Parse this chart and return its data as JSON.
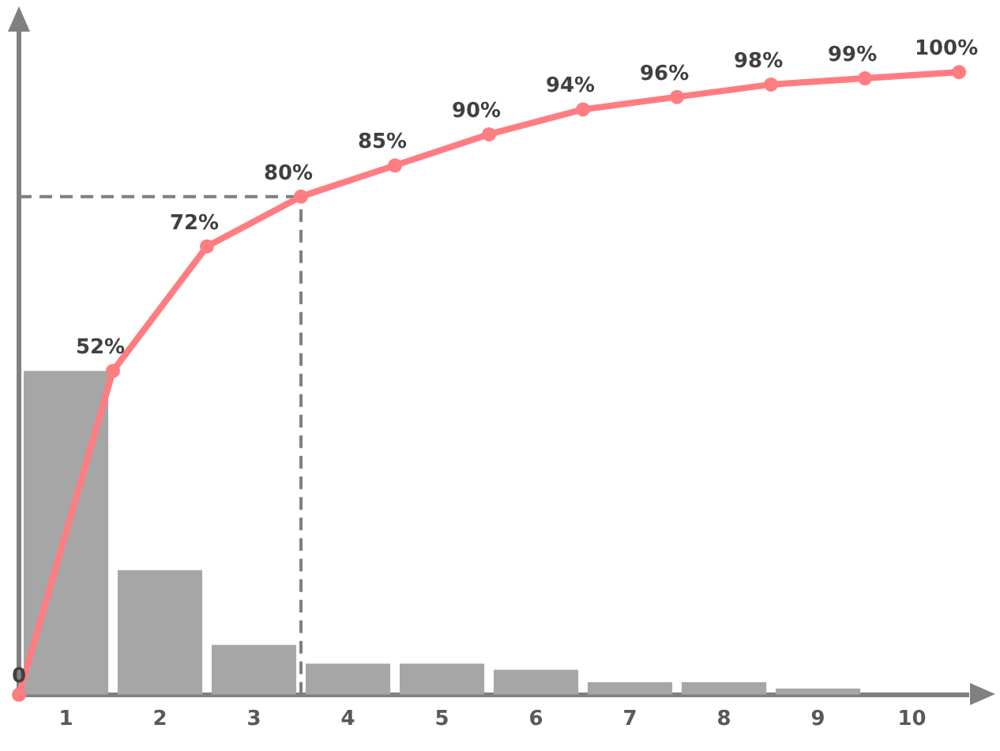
{
  "chart_data": {
    "type": "bar",
    "x": [
      1,
      2,
      3,
      4,
      5,
      6,
      7,
      8,
      9
    ],
    "xlim": [
      0.5,
      10.6
    ],
    "xticks": [
      1,
      2,
      3,
      4,
      5,
      6,
      7,
      8,
      9,
      10
    ],
    "series": [
      {
        "color": "#a6a6a6",
        "values": [
          52,
          20,
          8,
          5,
          5,
          4,
          2,
          2,
          1
        ]
      },
      {
        "type": "line",
        "color": "#ff7c80",
        "x": [
          0.5,
          1.5,
          2.5,
          3.5,
          4.5,
          5.5,
          6.5,
          7.5,
          8.5,
          9.5,
          10.5
        ],
        "values": [
          0,
          52,
          72,
          80,
          85,
          90,
          94,
          96,
          98,
          99,
          100
        ],
        "value_labels": [
          "0",
          "52%",
          "72%",
          "80%",
          "85%",
          "90%",
          "94%",
          "96%",
          "98%",
          "99%",
          "100%"
        ]
      }
    ],
    "ylim": [
      0,
      107
    ],
    "tick_labels": "x",
    "grid": false,
    "legend": false,
    "marker": "circle",
    "line_style": "solid",
    "ref_lines": [
      {
        "axis": "y",
        "value": 80,
        "color": "#7f7f7f",
        "line_style": "dashed"
      },
      {
        "axis": "x",
        "value": 3.5,
        "color": "#7f7f7f",
        "line_style": "dashed"
      }
    ]
  }
}
